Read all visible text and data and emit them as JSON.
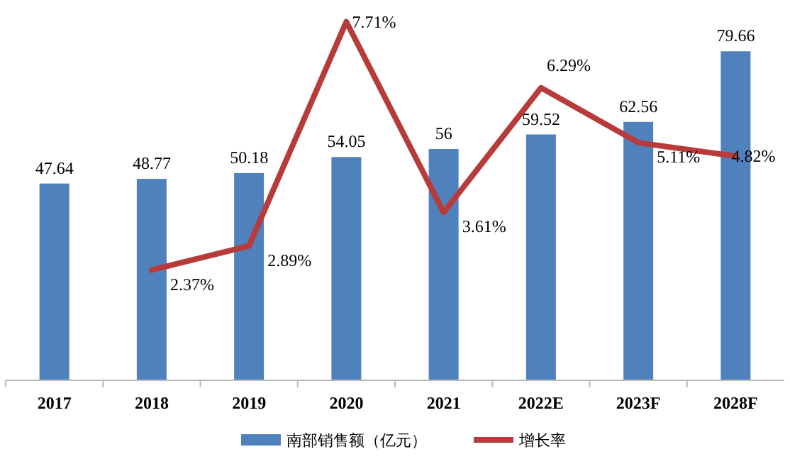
{
  "chart_data": {
    "type": "bar",
    "categories": [
      "2017",
      "2018",
      "2019",
      "2020",
      "2021",
      "2022E",
      "2023F",
      "2028F"
    ],
    "series": [
      {
        "name": "南部销售额（亿元）",
        "color": "#4f81bd",
        "values": [
          47.64,
          48.77,
          50.18,
          54.05,
          56,
          59.52,
          62.56,
          79.66
        ]
      },
      {
        "name": "增长率",
        "type": "line",
        "axis": "y2",
        "color": "#b83b3b",
        "values": [
          null,
          2.37,
          2.89,
          7.71,
          3.61,
          6.29,
          5.11,
          4.82
        ],
        "value_labels": [
          null,
          "2.37%",
          "2.89%",
          "7.71%",
          "3.61%",
          "6.29%",
          "5.11%",
          "4.82%"
        ]
      }
    ],
    "data_labels": true,
    "legend": "bottom",
    "marker": "none",
    "line_style": "solid",
    "grid": false
  }
}
